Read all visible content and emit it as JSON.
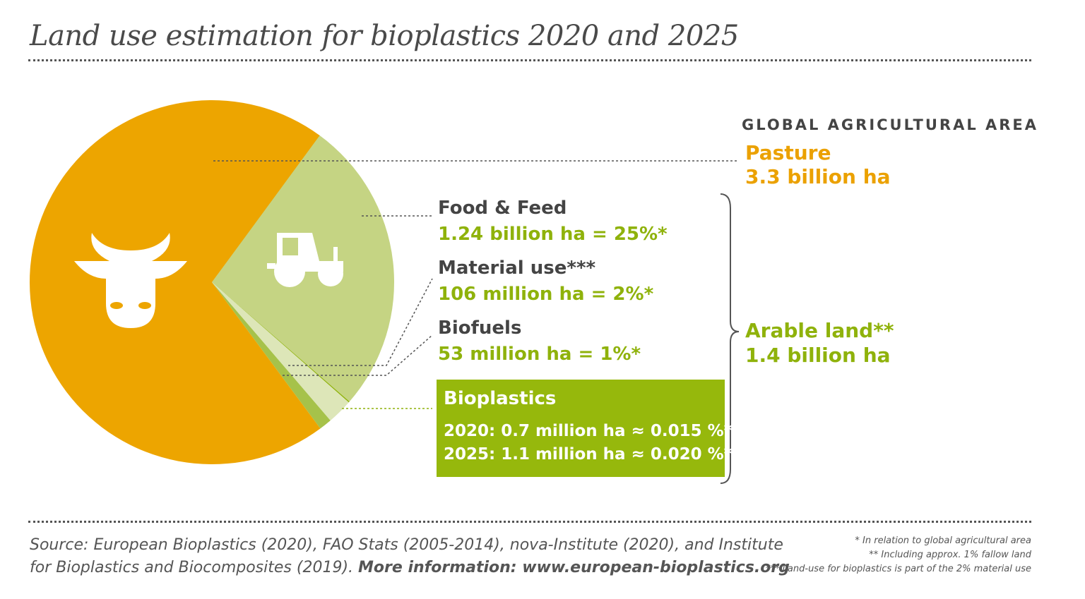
{
  "title": "Land use estimation for bioplastics 2020 and 2025",
  "header": "GLOBAL AGRICULTURAL AREA",
  "pasture": {
    "label": "Pasture",
    "value": "3.3 billion ha"
  },
  "food_feed": {
    "label": "Food & Feed",
    "value": "1.24 billion ha = 25%*"
  },
  "material": {
    "label": "Material use***",
    "value": "106 million ha = 2%*"
  },
  "biofuels": {
    "label": "Biofuels",
    "value": "53 million ha = 1%*"
  },
  "bioplastics": {
    "label": "Bioplastics",
    "line2020": "2020: 0.7 million ha ≈ 0.015 %*",
    "line2025": "2025: 1.1 million ha ≈ 0.020 %*"
  },
  "arable": {
    "label": "Arable land**",
    "value": "1.4 billion ha"
  },
  "source": {
    "text": "Source: European Bioplastics (2020), FAO Stats (2005-2014), nova-Institute (2020), and Institute for Bioplastics and Biocomposites (2019).",
    "more": "More information: www.european-bioplastics.org"
  },
  "footnotes": [
    "* In relation to global agricultural area",
    "** Including approx. 1% fallow land",
    "*** Land-use for bioplastics is part of the 2% material use"
  ],
  "colors": {
    "pasture": "#eda500",
    "food_feed": "#c5d483",
    "material": "#dde6b8",
    "biofuels": "#a6c24a",
    "bioplastics": "#8fb20b"
  },
  "chart_data": {
    "type": "pie",
    "unit": "billion ha",
    "slices": [
      {
        "name": "Pasture",
        "value": 3.3,
        "color": "#eda500",
        "icon": "cow-icon"
      },
      {
        "name": "Food & Feed",
        "value": 1.24,
        "color": "#c5d483",
        "icon": "tractor-icon"
      },
      {
        "name": "Bioplastics",
        "value": 0.0011,
        "color": "#8fb20b"
      },
      {
        "name": "Material use",
        "value": 0.106,
        "color": "#dde6b8"
      },
      {
        "name": "Biofuels",
        "value": 0.053,
        "color": "#a6c24a"
      }
    ]
  }
}
